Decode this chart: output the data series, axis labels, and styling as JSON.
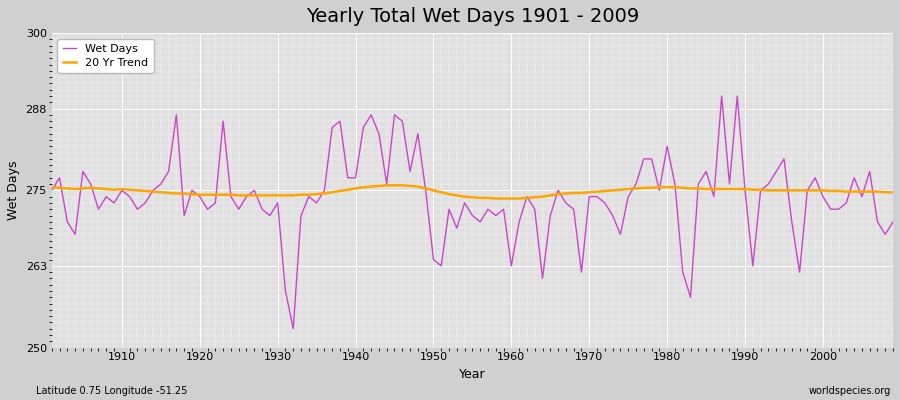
{
  "title": "Yearly Total Wet Days 1901 - 2009",
  "xlabel": "Year",
  "ylabel": "Wet Days",
  "lat_lon_label": "Latitude 0.75 Longitude -51.25",
  "watermark": "worldspecies.org",
  "ylim": [
    250,
    300
  ],
  "yticks": [
    250,
    263,
    275,
    288,
    300
  ],
  "xlim": [
    1901,
    2009
  ],
  "xticks": [
    1910,
    1920,
    1930,
    1940,
    1950,
    1960,
    1970,
    1980,
    1990,
    2000
  ],
  "years": [
    1901,
    1902,
    1903,
    1904,
    1905,
    1906,
    1907,
    1908,
    1909,
    1910,
    1911,
    1912,
    1913,
    1914,
    1915,
    1916,
    1917,
    1918,
    1919,
    1920,
    1921,
    1922,
    1923,
    1924,
    1925,
    1926,
    1927,
    1928,
    1929,
    1930,
    1931,
    1932,
    1933,
    1934,
    1935,
    1936,
    1937,
    1938,
    1939,
    1940,
    1941,
    1942,
    1943,
    1944,
    1945,
    1946,
    1947,
    1948,
    1949,
    1950,
    1951,
    1952,
    1953,
    1954,
    1955,
    1956,
    1957,
    1958,
    1959,
    1960,
    1961,
    1962,
    1963,
    1964,
    1965,
    1966,
    1967,
    1968,
    1969,
    1970,
    1971,
    1972,
    1973,
    1974,
    1975,
    1976,
    1977,
    1978,
    1979,
    1980,
    1981,
    1982,
    1983,
    1984,
    1985,
    1986,
    1987,
    1988,
    1989,
    1990,
    1991,
    1992,
    1993,
    1994,
    1995,
    1996,
    1997,
    1998,
    1999,
    2000,
    2001,
    2002,
    2003,
    2004,
    2005,
    2006,
    2007,
    2008,
    2009
  ],
  "wet_days": [
    275,
    277,
    270,
    268,
    278,
    276,
    272,
    274,
    273,
    275,
    274,
    272,
    273,
    275,
    276,
    278,
    287,
    271,
    275,
    274,
    272,
    273,
    286,
    274,
    272,
    274,
    275,
    272,
    271,
    273,
    259,
    253,
    271,
    274,
    273,
    275,
    285,
    286,
    277,
    277,
    285,
    287,
    284,
    276,
    287,
    286,
    278,
    284,
    275,
    264,
    263,
    272,
    269,
    273,
    271,
    270,
    272,
    271,
    272,
    263,
    270,
    274,
    272,
    261,
    271,
    275,
    273,
    272,
    262,
    274,
    274,
    273,
    271,
    268,
    274,
    276,
    280,
    280,
    275,
    282,
    276,
    262,
    258,
    276,
    278,
    274,
    290,
    276,
    290,
    275,
    263,
    275,
    276,
    278,
    280,
    270,
    262,
    275,
    277,
    274,
    272,
    272,
    273,
    277,
    274,
    278,
    270,
    268,
    270
  ],
  "trend_values": [
    275.5,
    275.4,
    275.3,
    275.2,
    275.3,
    275.4,
    275.3,
    275.2,
    275.1,
    275.2,
    275.1,
    275.0,
    274.9,
    274.8,
    274.7,
    274.6,
    274.5,
    274.5,
    274.4,
    274.3,
    274.3,
    274.3,
    274.3,
    274.3,
    274.2,
    274.2,
    274.2,
    274.2,
    274.2,
    274.2,
    274.2,
    274.2,
    274.3,
    274.3,
    274.4,
    274.5,
    274.7,
    274.9,
    275.1,
    275.3,
    275.5,
    275.6,
    275.7,
    275.8,
    275.8,
    275.8,
    275.7,
    275.6,
    275.3,
    275.0,
    274.7,
    274.4,
    274.2,
    274.0,
    273.9,
    273.8,
    273.8,
    273.7,
    273.7,
    273.7,
    273.7,
    273.8,
    273.9,
    274.0,
    274.2,
    274.4,
    274.5,
    274.6,
    274.6,
    274.7,
    274.8,
    274.9,
    275.0,
    275.1,
    275.2,
    275.3,
    275.4,
    275.4,
    275.5,
    275.5,
    275.5,
    275.4,
    275.3,
    275.3,
    275.2,
    275.2,
    275.2,
    275.2,
    275.2,
    275.2,
    275.1,
    275.1,
    275.0,
    275.0,
    275.0,
    275.0,
    275.0,
    275.0,
    275.0,
    275.0,
    274.9,
    274.9,
    274.8,
    274.8,
    274.8,
    274.8,
    274.8,
    274.7,
    274.7
  ],
  "wet_days_color": "#cc44cc",
  "trend_color": "#FFA500",
  "fig_bg_color": "#d0d0d0",
  "plot_bg_color": "#e0e0e0",
  "grid_color": "#ffffff",
  "title_fontsize": 14,
  "axis_label_fontsize": 9,
  "tick_fontsize": 8,
  "legend_fontsize": 8
}
